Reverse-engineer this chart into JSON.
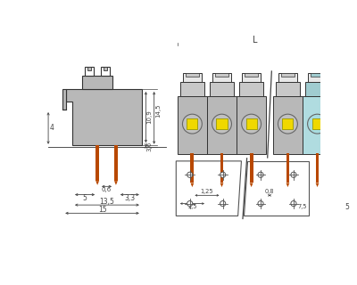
{
  "bg_color": "#ffffff",
  "line_color": "#333333",
  "gray_body": "#b8b8b8",
  "gray_dark": "#888888",
  "gray_top": "#c8c8c8",
  "orange_color": "#b84800",
  "yellow_color": "#f0d800",
  "cyan_body": "#b0dce0",
  "cyan_top": "#a0ccd0",
  "dim_color": "#444444",
  "white": "#ffffff",
  "dims": {
    "d4": "4",
    "d10_9": "10,9",
    "d14_5": "14,5",
    "d3_6": "3,6",
    "d0_6": "0,6",
    "d5a": "5",
    "d3_3": "3,3",
    "d13_5": "13,5",
    "d15": "15",
    "d1_25": "1,25",
    "d2_5": "2,5",
    "d0_8": "0,8",
    "d7_5": "7,5",
    "d5b": "5",
    "dL": "L"
  }
}
